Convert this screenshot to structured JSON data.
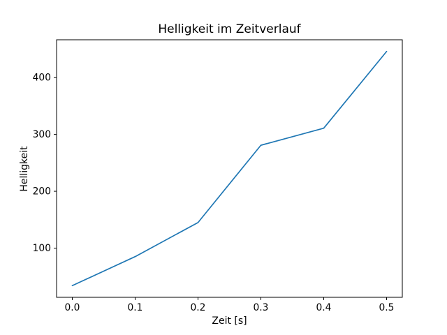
{
  "chart_data": {
    "type": "line",
    "title": "Helligkeit im Zeitverlauf",
    "xlabel": "Zeit [s]",
    "ylabel": "Helligkeit",
    "x": [
      0.0,
      0.1,
      0.2,
      0.3,
      0.4,
      0.5
    ],
    "values": [
      34,
      85,
      145,
      281,
      311,
      446
    ],
    "x_tick_values": [
      0.0,
      0.1,
      0.2,
      0.3,
      0.4,
      0.5
    ],
    "x_tick_labels": [
      "0.0",
      "0.1",
      "0.2",
      "0.3",
      "0.4",
      "0.5"
    ],
    "y_tick_values": [
      100,
      200,
      300,
      400
    ],
    "y_tick_labels": [
      "100",
      "200",
      "300",
      "400"
    ],
    "xlim": [
      -0.025,
      0.525
    ],
    "ylim": [
      13.4,
      466.6
    ],
    "grid": false,
    "legend": false,
    "line_color": "#1f77b4",
    "axis_color": "#000000",
    "text_color": "#000000",
    "background_color": "#ffffff"
  }
}
